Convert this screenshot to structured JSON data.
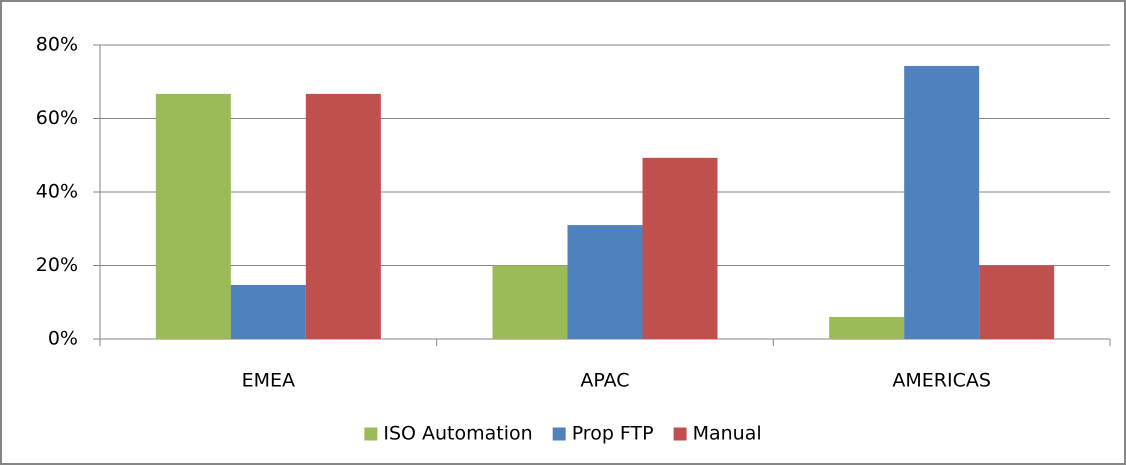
{
  "chart_data": {
    "type": "bar",
    "categories": [
      "EMEA",
      "APAC",
      "AMERICAS"
    ],
    "series": [
      {
        "name": "ISO Automation",
        "color": "#9bbb59",
        "values": [
          66.7,
          20,
          6
        ]
      },
      {
        "name": "Prop FTP",
        "color": "#4f81bd",
        "values": [
          14.7,
          31,
          74.3
        ]
      },
      {
        "name": "Manual",
        "color": "#c0504d",
        "values": [
          66.7,
          49.3,
          20
        ]
      }
    ],
    "ylim": [
      0,
      80
    ],
    "yticks": [
      {
        "value": 0,
        "label": "0%"
      },
      {
        "value": 20,
        "label": "20%"
      },
      {
        "value": 40,
        "label": "40%"
      },
      {
        "value": 60,
        "label": "60%"
      },
      {
        "value": 80,
        "label": "80%"
      }
    ],
    "grid": true,
    "legend": "bottom"
  }
}
